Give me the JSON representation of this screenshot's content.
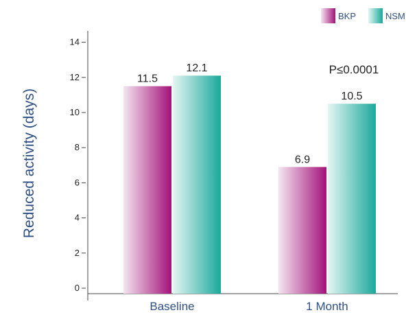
{
  "chart_data": {
    "type": "bar",
    "categories": [
      "Baseline",
      "1 Month"
    ],
    "series": [
      {
        "name": "BKP",
        "values": [
          11.5,
          6.9
        ],
        "value_labels": [
          "11.5",
          "6.9"
        ],
        "color": "#a3127a",
        "color_light": "#f4e6f0"
      },
      {
        "name": "NSM",
        "values": [
          12.1,
          10.5
        ],
        "value_labels": [
          "12.1",
          "10.5"
        ],
        "color": "#1aa99a",
        "color_light": "#e4f6f3"
      }
    ],
    "ylabel": "Reduced activity (days)",
    "yticks": [
      0,
      2,
      4,
      6,
      8,
      10,
      12,
      14
    ],
    "ylim": [
      0,
      14
    ],
    "annotation": "P≤0.0001",
    "legend_position": "top-right",
    "grid": false
  }
}
